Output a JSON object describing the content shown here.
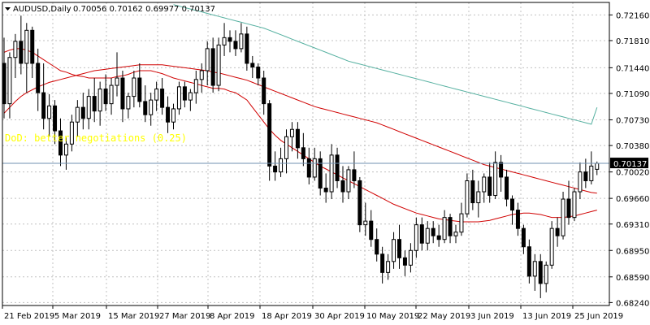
{
  "header": {
    "symbol": "AUDUSD,Daily",
    "ohlc": "0.70056 0.70162 0.69977 0.70137"
  },
  "annotation": "DoD: better negotiations (0.25)",
  "price_marker": "0.70137",
  "colors": {
    "background": "#ffffff",
    "grid": "#c0c0c0",
    "bull_candle": "#ffffff",
    "bear_candle": "#000000",
    "candle_outline": "#000000",
    "ma_short": "#d00000",
    "ma_long": "#55b0a0",
    "annotation": "#ffff00",
    "bid_line": "#7090b0"
  },
  "chart_data": {
    "type": "candlestick",
    "timeframe": "Daily",
    "ylim": [
      0.682,
      0.7233
    ],
    "y_ticks": [
      "0.72160",
      "0.71810",
      "0.71440",
      "0.71090",
      "0.70730",
      "0.70380",
      "0.70020",
      "0.69660",
      "0.69310",
      "0.68950",
      "0.68590",
      "0.68240"
    ],
    "x_ticks": [
      "21 Feb 2019",
      "5 Mar 2019",
      "15 Mar 2019",
      "27 Mar 2019",
      "8 Apr 2019",
      "18 Apr 2019",
      "30 Apr 2019",
      "10 May 2019",
      "22 May 2019",
      "3 Jun 2019",
      "13 Jun 2019",
      "25 Jun 2019"
    ],
    "grid": true,
    "series": [
      {
        "kind": "candles",
        "values": [
          [
            0.715,
            0.7185,
            0.7075,
            0.7095
          ],
          [
            0.7095,
            0.7165,
            0.7075,
            0.7158
          ],
          [
            0.7158,
            0.719,
            0.713,
            0.718
          ],
          [
            0.718,
            0.7215,
            0.7135,
            0.715
          ],
          [
            0.715,
            0.7205,
            0.711,
            0.7195
          ],
          [
            0.7195,
            0.72,
            0.713,
            0.715
          ],
          [
            0.715,
            0.717,
            0.7085,
            0.711
          ],
          [
            0.711,
            0.715,
            0.706,
            0.7075
          ],
          [
            0.7075,
            0.7108,
            0.705,
            0.7092
          ],
          [
            0.7092,
            0.71,
            0.704,
            0.7058
          ],
          [
            0.7058,
            0.7075,
            0.701,
            0.7025
          ],
          [
            0.7025,
            0.705,
            0.7005,
            0.704
          ],
          [
            0.704,
            0.708,
            0.703,
            0.707
          ],
          [
            0.707,
            0.71,
            0.705,
            0.709
          ],
          [
            0.709,
            0.711,
            0.706,
            0.7075
          ],
          [
            0.7075,
            0.7115,
            0.706,
            0.7105
          ],
          [
            0.7105,
            0.713,
            0.707,
            0.7085
          ],
          [
            0.7085,
            0.7125,
            0.7065,
            0.7115
          ],
          [
            0.7115,
            0.7135,
            0.7085,
            0.7095
          ],
          [
            0.7095,
            0.713,
            0.708,
            0.712
          ],
          [
            0.712,
            0.7165,
            0.7105,
            0.713
          ],
          [
            0.713,
            0.714,
            0.707,
            0.7088
          ],
          [
            0.7088,
            0.711,
            0.7075,
            0.7105
          ],
          [
            0.7105,
            0.714,
            0.709,
            0.713
          ],
          [
            0.713,
            0.715,
            0.709,
            0.7098
          ],
          [
            0.7098,
            0.712,
            0.707,
            0.708
          ],
          [
            0.708,
            0.711,
            0.7065,
            0.71
          ],
          [
            0.71,
            0.7125,
            0.7085,
            0.7115
          ],
          [
            0.7115,
            0.713,
            0.708,
            0.709
          ],
          [
            0.709,
            0.7105,
            0.7055,
            0.707
          ],
          [
            0.707,
            0.7095,
            0.706,
            0.7088
          ],
          [
            0.7088,
            0.7125,
            0.708,
            0.7118
          ],
          [
            0.7118,
            0.7125,
            0.709,
            0.71
          ],
          [
            0.71,
            0.7115,
            0.7085,
            0.711
          ],
          [
            0.711,
            0.714,
            0.7095,
            0.7128
          ],
          [
            0.7128,
            0.715,
            0.711,
            0.714
          ],
          [
            0.714,
            0.718,
            0.712,
            0.717
          ],
          [
            0.717,
            0.7185,
            0.711,
            0.712
          ],
          [
            0.712,
            0.7185,
            0.7112,
            0.7175
          ],
          [
            0.7175,
            0.7205,
            0.716,
            0.7185
          ],
          [
            0.7185,
            0.7195,
            0.7165,
            0.718
          ],
          [
            0.718,
            0.7195,
            0.716,
            0.717
          ],
          [
            0.717,
            0.7205,
            0.7165,
            0.719
          ],
          [
            0.719,
            0.72,
            0.714,
            0.715
          ],
          [
            0.715,
            0.716,
            0.713,
            0.7145
          ],
          [
            0.7145,
            0.715,
            0.712,
            0.713
          ],
          [
            0.713,
            0.714,
            0.708,
            0.7095
          ],
          [
            0.7095,
            0.71,
            0.699,
            0.701
          ],
          [
            0.701,
            0.703,
            0.699,
            0.7002
          ],
          [
            0.7002,
            0.7035,
            0.6995,
            0.702
          ],
          [
            0.702,
            0.706,
            0.7,
            0.705
          ],
          [
            0.705,
            0.707,
            0.703,
            0.706
          ],
          [
            0.706,
            0.707,
            0.702,
            0.7035
          ],
          [
            0.7035,
            0.7055,
            0.701,
            0.702
          ],
          [
            0.702,
            0.7035,
            0.6985,
            0.6995
          ],
          [
            0.6995,
            0.7035,
            0.699,
            0.702
          ],
          [
            0.702,
            0.703,
            0.697,
            0.698
          ],
          [
            0.698,
            0.7,
            0.696,
            0.6975
          ],
          [
            0.6975,
            0.704,
            0.6965,
            0.7025
          ],
          [
            0.7025,
            0.7035,
            0.698,
            0.699
          ],
          [
            0.699,
            0.701,
            0.696,
            0.6975
          ],
          [
            0.6975,
            0.701,
            0.6965,
            0.7005
          ],
          [
            0.7005,
            0.703,
            0.698,
            0.699
          ],
          [
            0.699,
            0.6995,
            0.692,
            0.693
          ],
          [
            0.693,
            0.696,
            0.6915,
            0.6935
          ],
          [
            0.6935,
            0.695,
            0.69,
            0.691
          ],
          [
            0.691,
            0.6925,
            0.688,
            0.689
          ],
          [
            0.689,
            0.69,
            0.685,
            0.6865
          ],
          [
            0.6865,
            0.689,
            0.6855,
            0.688
          ],
          [
            0.688,
            0.692,
            0.687,
            0.691
          ],
          [
            0.691,
            0.693,
            0.687,
            0.6885
          ],
          [
            0.6885,
            0.6895,
            0.686,
            0.6875
          ],
          [
            0.6875,
            0.6905,
            0.6865,
            0.6895
          ],
          [
            0.6895,
            0.694,
            0.6885,
            0.693
          ],
          [
            0.693,
            0.694,
            0.6895,
            0.6905
          ],
          [
            0.6905,
            0.6935,
            0.6895,
            0.6925
          ],
          [
            0.6925,
            0.6935,
            0.6905,
            0.6915
          ],
          [
            0.6915,
            0.693,
            0.69,
            0.691
          ],
          [
            0.691,
            0.695,
            0.6905,
            0.694
          ],
          [
            0.694,
            0.6945,
            0.6905,
            0.6915
          ],
          [
            0.6915,
            0.693,
            0.6905,
            0.692
          ],
          [
            0.692,
            0.696,
            0.6915,
            0.6945
          ],
          [
            0.6945,
            0.7,
            0.694,
            0.699
          ],
          [
            0.699,
            0.7005,
            0.695,
            0.696
          ],
          [
            0.696,
            0.699,
            0.694,
            0.6975
          ],
          [
            0.6975,
            0.7,
            0.696,
            0.6995
          ],
          [
            0.6995,
            0.7015,
            0.696,
            0.697
          ],
          [
            0.697,
            0.703,
            0.6965,
            0.7015
          ],
          [
            0.7015,
            0.7025,
            0.6975,
            0.6995
          ],
          [
            0.6995,
            0.7005,
            0.6955,
            0.6965
          ],
          [
            0.6965,
            0.697,
            0.693,
            0.695
          ],
          [
            0.695,
            0.696,
            0.6915,
            0.6925
          ],
          [
            0.6925,
            0.693,
            0.689,
            0.69
          ],
          [
            0.69,
            0.691,
            0.685,
            0.686
          ],
          [
            0.686,
            0.689,
            0.684,
            0.688
          ],
          [
            0.688,
            0.689,
            0.683,
            0.685
          ],
          [
            0.685,
            0.688,
            0.6838,
            0.6875
          ],
          [
            0.6875,
            0.6935,
            0.687,
            0.6925
          ],
          [
            0.6925,
            0.694,
            0.69,
            0.6915
          ],
          [
            0.6915,
            0.6975,
            0.691,
            0.6965
          ],
          [
            0.6965,
            0.699,
            0.693,
            0.694
          ],
          [
            0.694,
            0.698,
            0.6935,
            0.6975
          ],
          [
            0.6975,
            0.7015,
            0.6965,
            0.7002
          ],
          [
            0.7002,
            0.702,
            0.698,
            0.699
          ],
          [
            0.699,
            0.703,
            0.6985,
            0.701
          ],
          [
            0.70056,
            0.70162,
            0.69977,
            0.70137
          ]
        ]
      },
      {
        "kind": "ma",
        "role": "ma_short",
        "values": [
          0.7165,
          0.7168,
          0.717,
          0.717,
          0.7168,
          0.7165,
          0.716,
          0.7155,
          0.715,
          0.7145,
          0.714,
          0.7138,
          0.7135,
          0.7133,
          0.7132,
          0.713,
          0.713,
          0.713,
          0.713,
          0.713,
          0.7132,
          0.7133,
          0.7135,
          0.7138,
          0.714,
          0.714,
          0.714,
          0.7138,
          0.7136,
          0.7133,
          0.713,
          0.7128,
          0.7126,
          0.7124,
          0.7122,
          0.712,
          0.7118,
          0.7116,
          0.7116,
          0.7115,
          0.7112,
          0.711,
          0.7105,
          0.71,
          0.709,
          0.708,
          0.707,
          0.706,
          0.7052,
          0.7045,
          0.704,
          0.7035,
          0.703,
          0.7025,
          0.702,
          0.7015,
          0.701,
          0.7006,
          0.7002,
          0.6998,
          0.6994,
          0.699,
          0.6986,
          0.6982,
          0.6978,
          0.6974,
          0.697,
          0.6966,
          0.6962,
          0.6958,
          0.6955,
          0.6952,
          0.6949,
          0.6946,
          0.6944,
          0.6942,
          0.694,
          0.6938,
          0.6937,
          0.6936,
          0.6935,
          0.6934,
          0.6934,
          0.6934,
          0.6934,
          0.6935,
          0.6936,
          0.6938,
          0.694,
          0.6942,
          0.6944,
          0.6945,
          0.6946,
          0.6946,
          0.6945,
          0.6944,
          0.6942,
          0.694,
          0.694,
          0.694,
          0.6941,
          0.6942,
          0.6944,
          0.6946,
          0.6948,
          0.695
        ]
      },
      {
        "kind": "ma",
        "role": "ma_short",
        "values": [
          0.7082,
          0.709,
          0.7098,
          0.7105,
          0.711,
          0.7114,
          0.7118,
          0.7121,
          0.7124,
          0.7126,
          0.7128,
          0.713,
          0.7132,
          0.7134,
          0.7136,
          0.7138,
          0.714,
          0.7141,
          0.7142,
          0.7143,
          0.7144,
          0.7145,
          0.7146,
          0.7147,
          0.7148,
          0.7148,
          0.7148,
          0.7148,
          0.7148,
          0.7147,
          0.7146,
          0.7145,
          0.7144,
          0.7143,
          0.7142,
          0.7141,
          0.714,
          0.7138,
          0.7137,
          0.7135,
          0.7133,
          0.7131,
          0.7129,
          0.7127,
          0.7124,
          0.7121,
          0.7118,
          0.7115,
          0.7112,
          0.7109,
          0.7106,
          0.7103,
          0.71,
          0.7097,
          0.7094,
          0.7091,
          0.7089,
          0.7087,
          0.7085,
          0.7083,
          0.7081,
          0.7079,
          0.7077,
          0.7075,
          0.7073,
          0.7071,
          0.7069,
          0.7066,
          0.7063,
          0.706,
          0.7057,
          0.7054,
          0.7051,
          0.7048,
          0.7045,
          0.7042,
          0.7039,
          0.7036,
          0.7033,
          0.703,
          0.7027,
          0.7024,
          0.7021,
          0.7018,
          0.7015,
          0.7012,
          0.701,
          0.7008,
          0.7006,
          0.7004,
          0.7002,
          0.7,
          0.6998,
          0.6996,
          0.6994,
          0.6992,
          0.699,
          0.6988,
          0.6986,
          0.6984,
          0.6982,
          0.698,
          0.6978,
          0.6976,
          0.6974,
          0.6973
        ]
      },
      {
        "kind": "ma",
        "role": "ma_long",
        "values": [
          null,
          null,
          null,
          null,
          null,
          null,
          null,
          null,
          null,
          null,
          null,
          null,
          null,
          null,
          null,
          null,
          null,
          null,
          null,
          null,
          null,
          null,
          null,
          null,
          null,
          null,
          null,
          null,
          null,
          null,
          0.723,
          0.7228,
          0.7226,
          0.7224,
          0.7222,
          0.722,
          0.7218,
          0.7216,
          0.7214,
          0.7212,
          0.721,
          0.7208,
          0.7206,
          0.7204,
          0.7202,
          0.72,
          0.7198,
          0.7195,
          0.7192,
          0.7189,
          0.7186,
          0.7183,
          0.718,
          0.7177,
          0.7174,
          0.7171,
          0.7168,
          0.7165,
          0.7162,
          0.7159,
          0.7156,
          0.7153,
          0.7151,
          0.7149,
          0.7147,
          0.7145,
          0.7143,
          0.7141,
          0.7139,
          0.7137,
          0.7135,
          0.7133,
          0.7131,
          0.7129,
          0.7127,
          0.7125,
          0.7123,
          0.7121,
          0.7119,
          0.7117,
          0.7115,
          0.7113,
          0.7111,
          0.7109,
          0.7107,
          0.7105,
          0.7103,
          0.7101,
          0.7099,
          0.7097,
          0.7095,
          0.7093,
          0.7091,
          0.7089,
          0.7087,
          0.7085,
          0.7083,
          0.7081,
          0.7079,
          0.7077,
          0.7075,
          0.7073,
          0.7071,
          0.7069,
          0.7067,
          0.709
        ]
      }
    ]
  }
}
